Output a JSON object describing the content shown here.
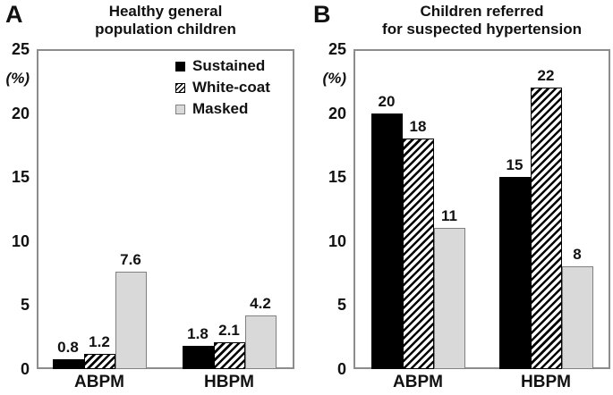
{
  "chart_data": [
    {
      "type": "bar",
      "panel_label": "A",
      "title": "Healthy general population children",
      "title_lines": [
        "Healthy general",
        "population children"
      ],
      "ylabel": "(%)",
      "ylim": [
        0,
        25
      ],
      "yticks": [
        25,
        20,
        15,
        10,
        5,
        0
      ],
      "grid": false,
      "categories": [
        "ABPM",
        "HBPM"
      ],
      "series": [
        {
          "name": "Sustained",
          "style": "solid-black",
          "values": [
            0.8,
            1.8
          ]
        },
        {
          "name": "White-coat",
          "style": "diagonal-hatch",
          "values": [
            1.2,
            2.1
          ]
        },
        {
          "name": "Masked",
          "style": "light-gray",
          "values": [
            7.6,
            4.2
          ]
        }
      ],
      "legend": {
        "visible": true,
        "position": "top-right",
        "entries": [
          "Sustained",
          "White-coat",
          "Masked"
        ]
      }
    },
    {
      "type": "bar",
      "panel_label": "B",
      "title": "Children referred for suspected hypertension",
      "title_lines": [
        "Children referred",
        "for suspected hypertension"
      ],
      "ylabel": "(%)",
      "ylim": [
        0,
        25
      ],
      "yticks": [
        25,
        20,
        15,
        10,
        5,
        0
      ],
      "grid": false,
      "categories": [
        "ABPM",
        "HBPM"
      ],
      "series": [
        {
          "name": "Sustained",
          "style": "solid-black",
          "values": [
            20,
            15
          ]
        },
        {
          "name": "White-coat",
          "style": "diagonal-hatch",
          "values": [
            18,
            22
          ]
        },
        {
          "name": "Masked",
          "style": "light-gray",
          "values": [
            11,
            8
          ]
        }
      ],
      "legend": {
        "visible": false
      }
    }
  ],
  "colors": {
    "sustained_bar": "#000000",
    "white_coat_hatch_fg": "#000000",
    "white_coat_hatch_bg": "#ffffff",
    "masked_fill": "#d9d9d9",
    "masked_border": "#808080",
    "plot_frame_border": "#8c8c8c",
    "text": "#111111",
    "background": "#ffffff"
  }
}
